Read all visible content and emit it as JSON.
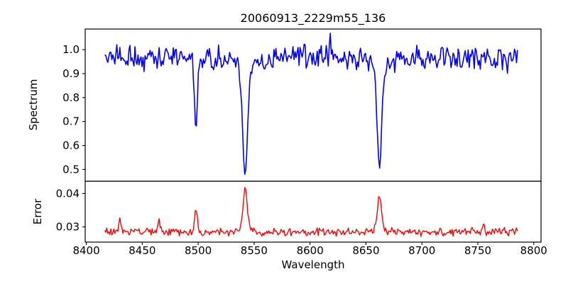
{
  "chart_data": {
    "type": "line",
    "title": "20060913_2229m55_136",
    "xlabel": "Wavelength",
    "legend": "none",
    "grid": false,
    "xlim": [
      8399,
      8806.5
    ],
    "xticks": [
      8400,
      8450,
      8500,
      8550,
      8600,
      8650,
      8700,
      8750,
      8800
    ],
    "x_range_data": [
      8416.5,
      8785.5
    ],
    "x_step": 0.9,
    "noise_seed": 20060913,
    "panels": [
      {
        "name": "spectrum",
        "ylabel": "Spectrum",
        "line_color": "#0000ff",
        "ylim": [
          0.451,
          1.086
        ],
        "yticks": [
          0.5,
          0.6,
          0.7,
          0.8,
          0.9,
          1.0
        ],
        "ytick_labels": [
          "0.5",
          "0.6",
          "0.7",
          "0.8",
          "0.9",
          "1.0"
        ],
        "baseline": 0.97,
        "noise_amplitude": 0.055,
        "features": [
          {
            "center": 8498,
            "depth": 0.305,
            "sigma": 1.3
          },
          {
            "center": 8542,
            "depth": 0.4,
            "sigma": 2.0
          },
          {
            "center": 8542,
            "depth": 0.09,
            "sigma": 5.0
          },
          {
            "center": 8662,
            "depth": 0.38,
            "sigma": 1.8
          },
          {
            "center": 8662,
            "depth": 0.085,
            "sigma": 4.5
          },
          {
            "center": 8618,
            "depth": -0.075,
            "sigma": 0.8
          },
          {
            "center": 8435,
            "depth": 0.03,
            "sigma": 0.9
          },
          {
            "center": 8452,
            "depth": 0.025,
            "sigma": 0.9
          },
          {
            "center": 8468,
            "depth": 0.035,
            "sigma": 0.9
          },
          {
            "center": 8482,
            "depth": 0.025,
            "sigma": 0.9
          },
          {
            "center": 8505,
            "depth": 0.028,
            "sigma": 0.9
          },
          {
            "center": 8514,
            "depth": 0.03,
            "sigma": 0.9
          },
          {
            "center": 8527,
            "depth": 0.025,
            "sigma": 0.9
          },
          {
            "center": 8560,
            "depth": 0.04,
            "sigma": 0.9
          },
          {
            "center": 8572,
            "depth": 0.025,
            "sigma": 0.9
          },
          {
            "center": 8583,
            "depth": 0.03,
            "sigma": 0.9
          },
          {
            "center": 8598,
            "depth": 0.035,
            "sigma": 0.9
          },
          {
            "center": 8626,
            "depth": 0.03,
            "sigma": 0.9
          },
          {
            "center": 8633,
            "depth": 0.045,
            "sigma": 0.9
          },
          {
            "center": 8641,
            "depth": 0.03,
            "sigma": 0.9
          },
          {
            "center": 8675,
            "depth": 0.03,
            "sigma": 0.9
          },
          {
            "center": 8688,
            "depth": 0.035,
            "sigma": 0.9
          },
          {
            "center": 8702,
            "depth": 0.025,
            "sigma": 0.9
          },
          {
            "center": 8713,
            "depth": 0.03,
            "sigma": 0.9
          },
          {
            "center": 8727,
            "depth": 0.025,
            "sigma": 0.9
          },
          {
            "center": 8736,
            "depth": 0.04,
            "sigma": 0.9
          },
          {
            "center": 8750,
            "depth": 0.025,
            "sigma": 0.9
          },
          {
            "center": 8763,
            "depth": 0.035,
            "sigma": 0.9
          },
          {
            "center": 8776,
            "depth": 0.03,
            "sigma": 0.9
          }
        ]
      },
      {
        "name": "error",
        "ylabel": "Error",
        "line_color": "#ff0000",
        "ylim": [
          0.0254,
          0.0437
        ],
        "yticks": [
          0.03,
          0.04
        ],
        "ytick_labels": [
          "0.03",
          "0.04"
        ],
        "baseline": 0.0285,
        "noise_amplitude": 0.0014,
        "features": [
          {
            "center": 8430,
            "depth": -0.004,
            "sigma": 1.0
          },
          {
            "center": 8465,
            "depth": -0.0035,
            "sigma": 1.0
          },
          {
            "center": 8498,
            "depth": -0.0075,
            "sigma": 1.2
          },
          {
            "center": 8542,
            "depth": -0.011,
            "sigma": 1.6
          },
          {
            "center": 8542,
            "depth": -0.0025,
            "sigma": 4.0
          },
          {
            "center": 8662,
            "depth": -0.009,
            "sigma": 1.5
          },
          {
            "center": 8662,
            "depth": -0.002,
            "sigma": 4.0
          },
          {
            "center": 8755,
            "depth": -0.002,
            "sigma": 1.2
          }
        ]
      }
    ]
  }
}
